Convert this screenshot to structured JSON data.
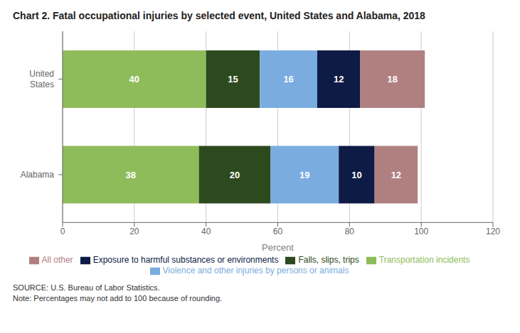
{
  "chart_data": {
    "type": "bar",
    "orientation": "horizontal",
    "stacked": true,
    "title": "Chart 2. Fatal occupational injuries by selected event, United States and Alabama, 2018",
    "categories": [
      "United\nStates",
      "Alabama"
    ],
    "series": [
      {
        "name": "Transportation incidents",
        "color": "#8fbc5a",
        "values": [
          40,
          38
        ]
      },
      {
        "name": "Falls, slips, trips",
        "color": "#2d4a1e",
        "values": [
          15,
          20
        ]
      },
      {
        "name": "Violence and other injuries by persons or animals",
        "color": "#7aace0",
        "values": [
          16,
          19
        ]
      },
      {
        "name": "Exposure to harmful substances or environments",
        "color": "#0d1b45",
        "values": [
          12,
          10
        ]
      },
      {
        "name": "All other",
        "color": "#b08080",
        "values": [
          18,
          12
        ]
      }
    ],
    "xlabel": "Percent",
    "xlim": [
      0,
      120
    ],
    "xticks": [
      0,
      20,
      40,
      60,
      80,
      100,
      120
    ],
    "grid": true,
    "legend": "bottom",
    "data_labels": true,
    "annotations": [
      "SOURCE: U.S. Bureau of Labor Statistics.",
      "Note: Percentages may not add to 100 because of rounding."
    ]
  }
}
